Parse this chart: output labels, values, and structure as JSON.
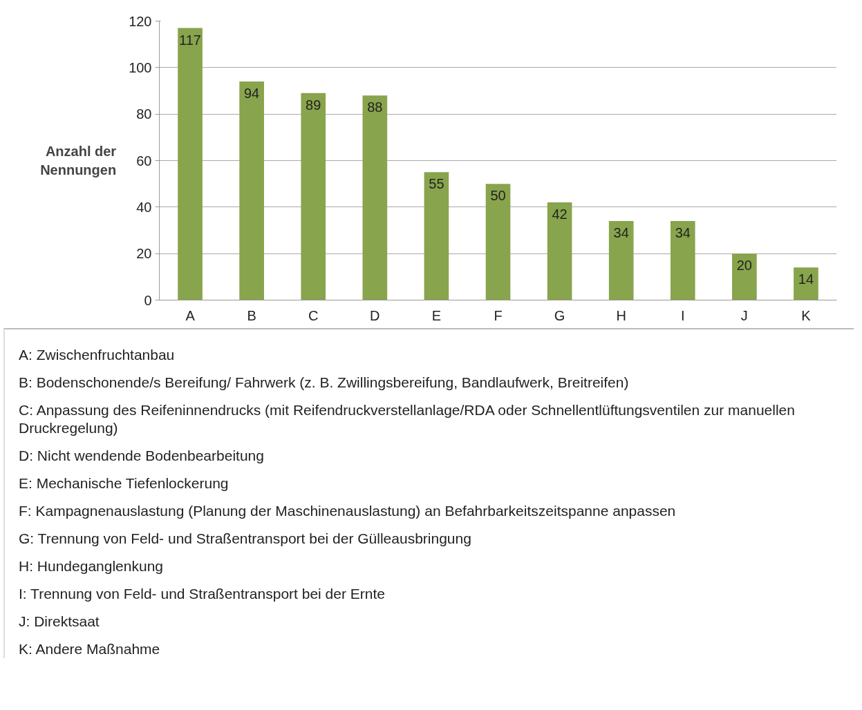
{
  "chart_data": {
    "type": "bar",
    "ylabel": "Anzahl der Nennungen",
    "categories": [
      "A",
      "B",
      "C",
      "D",
      "E",
      "F",
      "G",
      "H",
      "I",
      "J",
      "K"
    ],
    "values": [
      117,
      94,
      89,
      88,
      55,
      50,
      42,
      34,
      34,
      20,
      14
    ],
    "color": "#88a44c",
    "ylim": [
      0,
      120
    ],
    "yticks": [
      0,
      20,
      40,
      60,
      80,
      100,
      120
    ],
    "grid": "y",
    "data_labels": true,
    "annotations": [
      "A: Zwischenfruchtanbau",
      "B: Bodenschonende/s Bereifung/ Fahrwerk (z. B. Zwillingsbereifung, Bandlaufwerk, Breitreifen)",
      "C: Anpassung des Reifeninnendrucks (mit Reifendruckverstellanlage/RDA oder Schnellentlüftungsventilen zur manuellen Druckregelung)",
      "D: Nicht wendende Bodenbearbeitung",
      "E: Mechanische Tiefenlockerung",
      "F: Kampagnenauslastung (Planung der Maschinenauslastung) an Befahrbarkeitszeitspanne anpassen",
      "G: Trennung von Feld- und Straßentransport bei der Gülleausbringung",
      "H: Hundeganglenkung",
      "I: Trennung von Feld- und Straßentransport bei der Ernte",
      "J: Direktsaat",
      "K: Andere Maßnahme"
    ]
  }
}
